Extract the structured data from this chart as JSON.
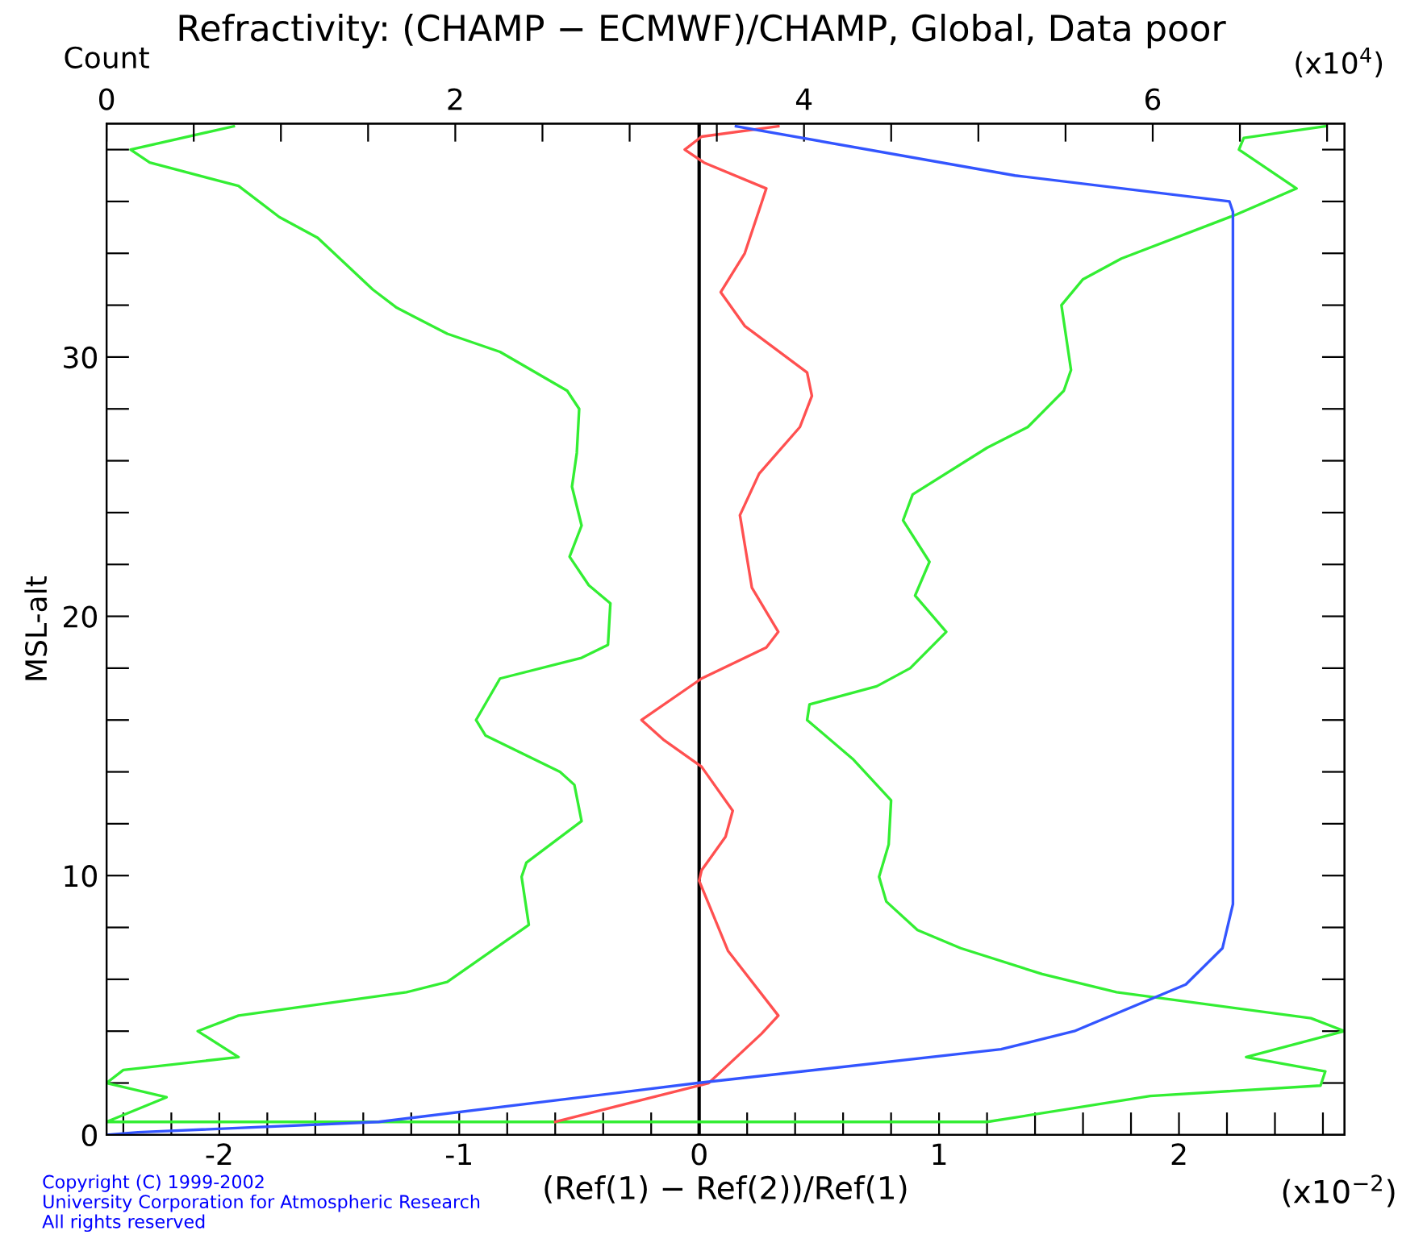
{
  "chart_data": {
    "type": "line",
    "title": "Refractivity: (CHAMP − ECMWF)/CHAMP, Global, Data poor",
    "xlabel": "(Ref(1) − Ref(2))/Ref(1)",
    "ylabel": "MSL-alt",
    "x2label": "Count",
    "annotations": [
      "(x10$^{−2}$)",
      "(x10$^{4}$)",
      "Copyright (C) 1999-2002",
      "University Corporation for Atmospheric Research",
      "All rights reserved"
    ],
    "xlim": [
      -2.47,
      2.69
    ],
    "xticks": [
      {
        "value": -2.4,
        "label": null
      },
      {
        "value": -2.2,
        "label": null
      },
      -2,
      {
        "value": -1.8,
        "label": null
      },
      {
        "value": -1.6,
        "label": null
      },
      {
        "value": -1.4,
        "label": null
      },
      {
        "value": -1.2,
        "label": null
      },
      -1,
      {
        "value": -0.8,
        "label": null
      },
      {
        "value": -0.6,
        "label": null
      },
      {
        "value": -0.4,
        "label": null
      },
      {
        "value": -0.2,
        "label": null
      },
      0,
      {
        "value": 0.2,
        "label": null
      },
      {
        "value": 0.4,
        "label": null
      },
      {
        "value": 0.6,
        "label": null
      },
      {
        "value": 0.8,
        "label": null
      },
      1,
      {
        "value": 1.2,
        "label": null
      },
      {
        "value": 1.4,
        "label": null
      },
      {
        "value": 1.6,
        "label": null
      },
      {
        "value": 1.8,
        "label": null
      },
      2,
      {
        "value": 2.2,
        "label": null
      },
      {
        "value": 2.4,
        "label": null
      },
      {
        "value": 2.6,
        "label": null
      }
    ],
    "x2lim": [
      0,
      7.1
    ],
    "x2ticks": [
      0,
      {
        "value": 0.5,
        "label": null
      },
      {
        "value": 1,
        "label": null
      },
      {
        "value": 1.5,
        "label": null
      },
      2,
      {
        "value": 2.5,
        "label": null
      },
      {
        "value": 3,
        "label": null
      },
      {
        "value": 3.5,
        "label": null
      },
      4,
      {
        "value": 4.5,
        "label": null
      },
      {
        "value": 5,
        "label": null
      },
      {
        "value": 5.5,
        "label": null
      },
      6,
      {
        "value": 6.5,
        "label": null
      },
      {
        "value": 7,
        "label": null
      }
    ],
    "ylim": [
      0,
      39
    ],
    "yticks": [
      0,
      {
        "value": 2,
        "label": null
      },
      {
        "value": 4,
        "label": null
      },
      {
        "value": 6,
        "label": null
      },
      {
        "value": 8,
        "label": null
      },
      10,
      {
        "value": 12,
        "label": null
      },
      {
        "value": 14,
        "label": null
      },
      {
        "value": 16,
        "label": null
      },
      {
        "value": 18,
        "label": null
      },
      20,
      {
        "value": 22,
        "label": null
      },
      {
        "value": 24,
        "label": null
      },
      {
        "value": 26,
        "label": null
      },
      {
        "value": 28,
        "label": null
      },
      30,
      {
        "value": 32,
        "label": null
      },
      {
        "value": 34,
        "label": null
      },
      {
        "value": 36,
        "label": null
      },
      {
        "value": 38,
        "label": null
      }
    ],
    "ref_lines": [
      {
        "axis": "x",
        "value": 0,
        "color": "#000000"
      }
    ],
    "grid": false,
    "legend": false,
    "marker": "none",
    "line_style": "solid",
    "series": [
      {
        "color": "#33ee33",
        "x": [
          -1.94,
          -2.37,
          -2.29,
          -1.92,
          -1.75,
          -1.59,
          -1.36,
          -1.26,
          -1.05,
          -0.83,
          -0.55,
          -0.5,
          -0.51,
          -0.53,
          -0.49,
          -0.54,
          -0.46,
          -0.37,
          -0.38,
          -0.49,
          -0.83,
          -0.93,
          -0.89,
          -0.58,
          -0.52,
          -0.49,
          -0.72,
          -0.74,
          -0.71,
          -1.05,
          -1.22,
          -1.92,
          -2.09,
          -1.92,
          -2.4,
          -2.47,
          -2.22,
          -2.47
        ],
        "values": [
          38.9,
          38.0,
          37.5,
          36.6,
          35.4,
          34.6,
          32.6,
          31.9,
          30.9,
          30.2,
          28.7,
          28.0,
          26.3,
          25.0,
          23.5,
          22.3,
          21.2,
          20.5,
          18.9,
          18.4,
          17.6,
          16.0,
          15.4,
          14.0,
          13.5,
          12.1,
          10.5,
          9.95,
          8.1,
          5.9,
          5.5,
          4.6,
          4.0,
          3.0,
          2.5,
          2.0,
          1.45,
          0.5
        ]
      },
      {
        "color": "#33ee33",
        "x": [
          2.61,
          2.27,
          2.25,
          2.49,
          2.24,
          1.76,
          1.6,
          1.51,
          1.55,
          1.52,
          1.37,
          1.2,
          0.89,
          0.85,
          0.96,
          0.9,
          1.03,
          0.88,
          0.74,
          0.46,
          0.45,
          0.64,
          0.8,
          0.79,
          0.75,
          0.78,
          0.91,
          1.09,
          1.43,
          1.74,
          2.55,
          2.69,
          2.28,
          2.61,
          2.59,
          1.88,
          1.2,
          -2.47
        ],
        "values": [
          38.9,
          38.45,
          38.0,
          36.5,
          35.5,
          33.8,
          33.0,
          32.0,
          29.5,
          28.7,
          27.3,
          26.5,
          24.7,
          23.7,
          22.1,
          20.8,
          19.4,
          18.0,
          17.3,
          16.6,
          16.0,
          14.5,
          12.9,
          11.2,
          9.95,
          9.0,
          7.9,
          7.2,
          6.2,
          5.5,
          4.5,
          4.0,
          3.0,
          2.45,
          1.9,
          1.5,
          0.5,
          0.5
        ]
      },
      {
        "color": "#ff5050",
        "x": [
          0.33,
          0.01,
          -0.06,
          0.02,
          0.28,
          0.19,
          0.09,
          0.19,
          0.45,
          0.47,
          0.42,
          0.25,
          0.17,
          0.22,
          0.33,
          0.28,
          0.01,
          -0.24,
          -0.15,
          0.01,
          0.14,
          0.11,
          0.01,
          0.0,
          0.12,
          0.33,
          0.26,
          0.04,
          -0.6
        ],
        "values": [
          38.9,
          38.5,
          38.0,
          37.5,
          36.5,
          34.0,
          32.5,
          31.2,
          29.4,
          28.5,
          27.3,
          25.5,
          23.9,
          21.1,
          19.4,
          18.8,
          17.6,
          16.0,
          15.25,
          14.2,
          12.5,
          11.5,
          10.2,
          9.8,
          7.1,
          4.6,
          3.9,
          2.0,
          0.5
        ]
      },
      {
        "color": "#3355ff",
        "axis": "x2",
        "x": [
          3.61,
          5.21,
          6.44,
          6.46,
          6.46,
          6.4,
          6.19,
          5.55,
          5.13,
          3.39,
          1.56,
          0.18,
          0.0
        ],
        "values": [
          38.9,
          37.0,
          36.0,
          35.6,
          8.9,
          7.2,
          5.8,
          4.0,
          3.3,
          2.0,
          0.5,
          0.1,
          0.0
        ]
      }
    ]
  }
}
